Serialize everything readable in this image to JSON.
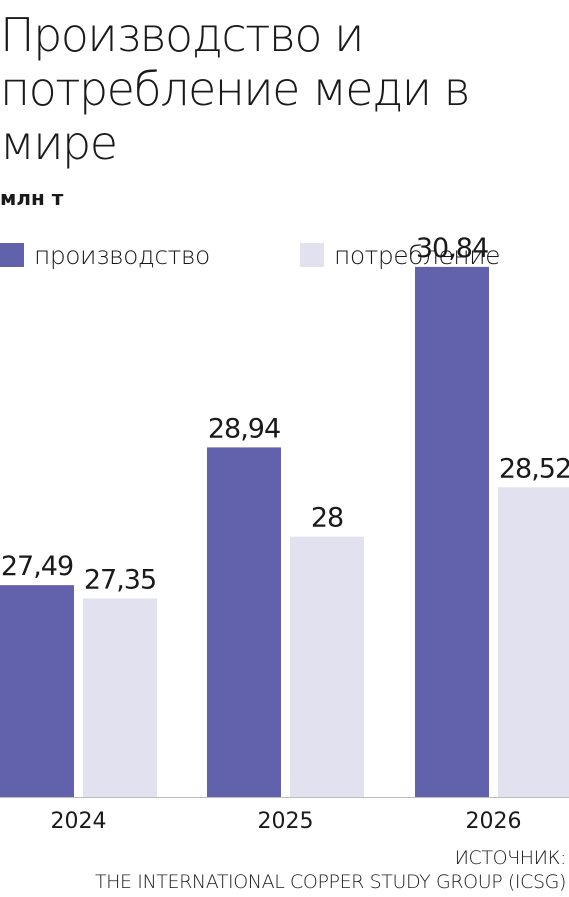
{
  "title": "Производство и потребление меди в мире",
  "subtitle": "млн т",
  "legend": [
    {
      "label": "производство",
      "color": "#6161ac"
    },
    {
      "label": "потребление",
      "color": "#e1e1ef"
    }
  ],
  "source": {
    "line1": "ИСТОЧНИК:",
    "line2": "THE INTERNATIONAL COPPER STUDY GROUP (ICSG)"
  },
  "chart_data": {
    "type": "bar",
    "categories": [
      "2024",
      "2025",
      "2026"
    ],
    "series": [
      {
        "name": "производство",
        "values": [
          27.49,
          28.94,
          30.84
        ],
        "labels": [
          "27,49",
          "28,94",
          "30,84"
        ],
        "color": "#6161ac"
      },
      {
        "name": "потребление",
        "values": [
          27.35,
          28,
          28.52
        ],
        "labels": [
          "27,35",
          "28",
          "28,52"
        ],
        "color": "#e1e1ef"
      }
    ],
    "title": "Производство и потребление меди в мире",
    "ylabel": "млн т",
    "legend_position": "top",
    "grid": false
  }
}
